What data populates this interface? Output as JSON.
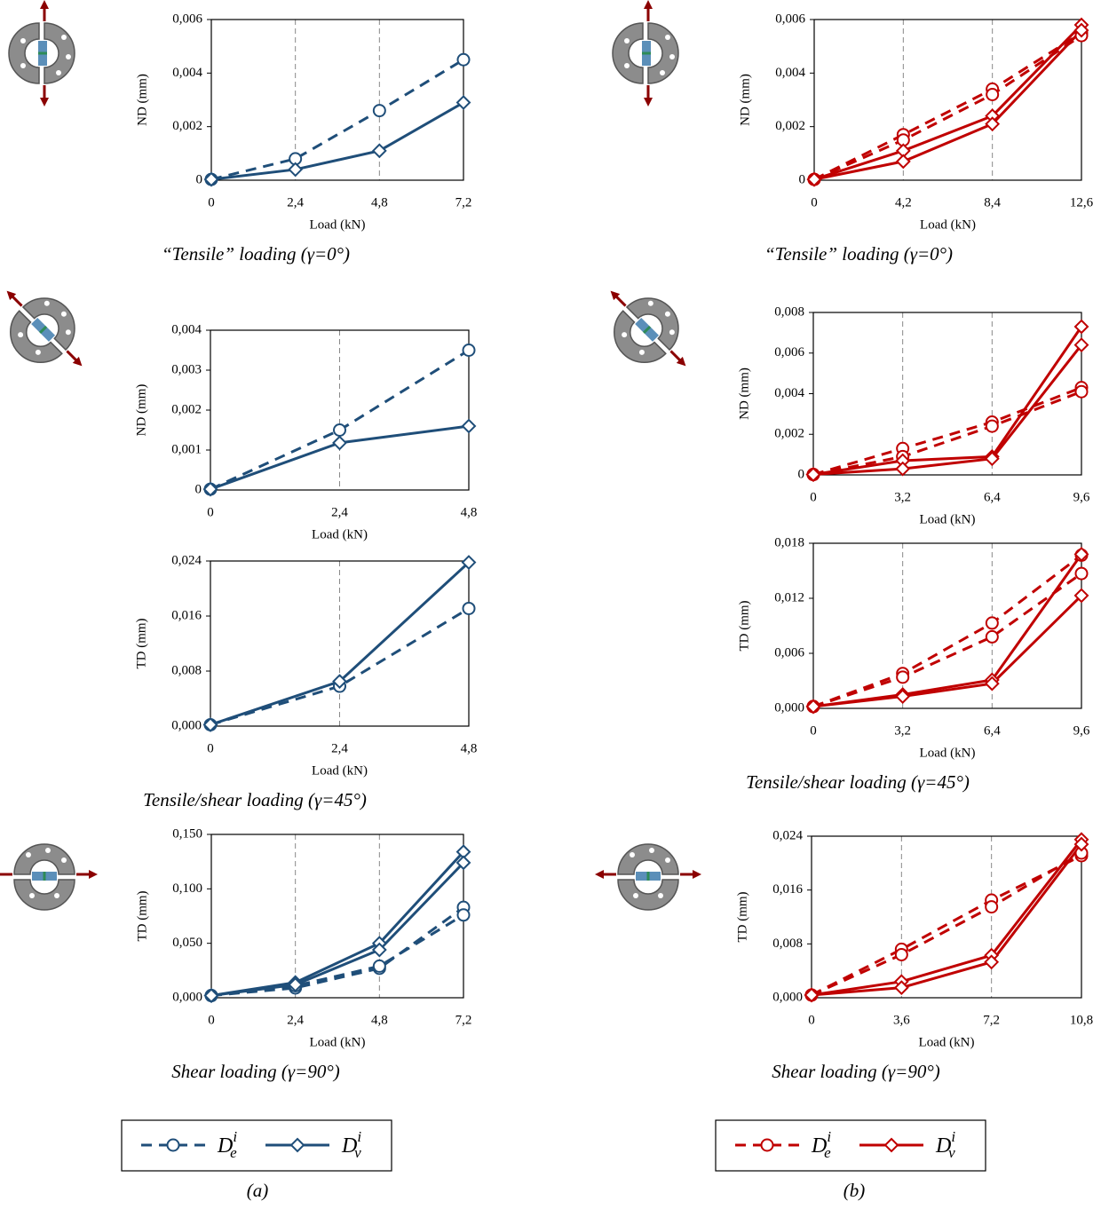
{
  "chart_data": [
    {
      "type": "line",
      "xlabel": "Load (kN)",
      "ylabel": "ND (mm)",
      "caption": "“Tensile” loading (γ=0°)",
      "x": [
        0,
        2.4,
        4.8,
        7.2
      ],
      "xlim": [
        0,
        7.2
      ],
      "xticks": [
        0,
        {
          "value": 2.4,
          "label": "2,4"
        },
        {
          "value": 4.8,
          "label": "4,8"
        },
        {
          "value": 7.2,
          "label": "7,2"
        }
      ],
      "xgrid": true,
      "ylim": [
        0,
        0.006
      ],
      "yticks": [
        0,
        {
          "value": 0.002,
          "label": "0,002"
        },
        {
          "value": 0.004,
          "label": "0,004"
        },
        {
          "value": 0.006,
          "label": "0,006"
        }
      ],
      "series": [
        {
          "color": "#1f4e79",
          "style": "dashed",
          "marker": "circle",
          "values": [
            3e-05,
            0.0008,
            0.0026,
            0.0045
          ]
        },
        {
          "color": "#1f4e79",
          "style": "solid",
          "marker": "diamond",
          "values": [
            3e-05,
            0.0004,
            0.0011,
            0.0029
          ]
        }
      ]
    },
    {
      "type": "line",
      "xlabel": "Load (kN)",
      "ylabel": "ND (mm)",
      "caption": "“Tensile” loading (γ=0°)",
      "x": [
        0,
        4.2,
        8.4,
        12.6
      ],
      "xlim": [
        0,
        12.6
      ],
      "xticks": [
        0,
        {
          "value": 4.2,
          "label": "4,2"
        },
        {
          "value": 8.4,
          "label": "8,4"
        },
        {
          "value": 12.6,
          "label": "12,6"
        }
      ],
      "xgrid": true,
      "ylim": [
        0,
        0.006
      ],
      "yticks": [
        0,
        {
          "value": 0.002,
          "label": "0,002"
        },
        {
          "value": 0.004,
          "label": "0,004"
        },
        {
          "value": 0.006,
          "label": "0,006"
        }
      ],
      "series": [
        {
          "color": "#c00000",
          "style": "dashed",
          "marker": "circle",
          "values": [
            3e-05,
            0.0017,
            0.0034,
            0.0055
          ]
        },
        {
          "color": "#c00000",
          "style": "dashed",
          "marker": "circle",
          "values": [
            3e-05,
            0.0015,
            0.0032,
            0.0054
          ]
        },
        {
          "color": "#c00000",
          "style": "solid",
          "marker": "diamond",
          "values": [
            3e-05,
            0.0011,
            0.0024,
            0.0058
          ]
        },
        {
          "color": "#c00000",
          "style": "solid",
          "marker": "diamond",
          "values": [
            3e-05,
            0.0007,
            0.0021,
            0.0056
          ]
        }
      ]
    },
    {
      "type": "line",
      "xlabel": "Load (kN)",
      "ylabel": "ND (mm)",
      "x": [
        0,
        2.4,
        4.8
      ],
      "xlim": [
        0,
        4.8
      ],
      "xticks": [
        0,
        {
          "value": 2.4,
          "label": "2,4"
        },
        {
          "value": 4.8,
          "label": "4,8"
        }
      ],
      "xgrid": true,
      "ylim": [
        0,
        0.004
      ],
      "yticks": [
        0,
        {
          "value": 0.001,
          "label": "0,001"
        },
        {
          "value": 0.002,
          "label": "0,002"
        },
        {
          "value": 0.003,
          "label": "0,003"
        },
        {
          "value": 0.004,
          "label": "0,004"
        }
      ],
      "series": [
        {
          "color": "#1f4e79",
          "style": "dashed",
          "marker": "circle",
          "values": [
            2e-05,
            0.0015,
            0.0035
          ]
        },
        {
          "color": "#1f4e79",
          "style": "solid",
          "marker": "diamond",
          "values": [
            2e-05,
            0.00118,
            0.0016
          ]
        }
      ]
    },
    {
      "type": "line",
      "xlabel": "Load (kN)",
      "ylabel": "ND (mm)",
      "x": [
        0,
        3.2,
        6.4,
        9.6
      ],
      "xlim": [
        0,
        9.6
      ],
      "xticks": [
        0,
        {
          "value": 3.2,
          "label": "3,2"
        },
        {
          "value": 6.4,
          "label": "6,4"
        },
        {
          "value": 9.6,
          "label": "9,6"
        }
      ],
      "xgrid": true,
      "ylim": [
        0,
        0.008
      ],
      "yticks": [
        0,
        {
          "value": 0.002,
          "label": "0,002"
        },
        {
          "value": 0.004,
          "label": "0,004"
        },
        {
          "value": 0.006,
          "label": "0,006"
        },
        {
          "value": 0.008,
          "label": "0,008"
        }
      ],
      "series": [
        {
          "color": "#c00000",
          "style": "dashed",
          "marker": "circle",
          "values": [
            2e-05,
            0.0013,
            0.0026,
            0.0043
          ]
        },
        {
          "color": "#c00000",
          "style": "dashed",
          "marker": "circle",
          "values": [
            2e-05,
            0.0009,
            0.0024,
            0.0041
          ]
        },
        {
          "color": "#c00000",
          "style": "solid",
          "marker": "diamond",
          "values": [
            2e-05,
            0.0007,
            0.0009,
            0.0073
          ]
        },
        {
          "color": "#c00000",
          "style": "solid",
          "marker": "diamond",
          "values": [
            2e-05,
            0.0003,
            0.0008,
            0.0064
          ]
        }
      ]
    },
    {
      "type": "line",
      "xlabel": "Load (kN)",
      "ylabel": "TD (mm)",
      "caption": "Tensile/shear loading (γ=45°)",
      "x": [
        0,
        2.4,
        4.8
      ],
      "xlim": [
        0,
        4.8
      ],
      "xticks": [
        0,
        {
          "value": 2.4,
          "label": "2,4"
        },
        {
          "value": 4.8,
          "label": "4,8"
        }
      ],
      "xgrid": true,
      "ylim": [
        0,
        0.024
      ],
      "yticks": [
        {
          "value": 0,
          "label": "0,000"
        },
        {
          "value": 0.008,
          "label": "0,008"
        },
        {
          "value": 0.016,
          "label": "0,016"
        },
        {
          "value": 0.024,
          "label": "0,024"
        }
      ],
      "series": [
        {
          "color": "#1f4e79",
          "style": "dashed",
          "marker": "circle",
          "values": [
            0.0002,
            0.0058,
            0.0171
          ]
        },
        {
          "color": "#1f4e79",
          "style": "solid",
          "marker": "diamond",
          "values": [
            0.0002,
            0.0065,
            0.0238
          ]
        }
      ]
    },
    {
      "type": "line",
      "xlabel": "Load (kN)",
      "ylabel": "TD (mm)",
      "caption": "Tensile/shear loading (γ=45°)",
      "x": [
        0,
        3.2,
        6.4,
        9.6
      ],
      "xlim": [
        0,
        9.6
      ],
      "xticks": [
        0,
        {
          "value": 3.2,
          "label": "3,2"
        },
        {
          "value": 6.4,
          "label": "6,4"
        },
        {
          "value": 9.6,
          "label": "9,6"
        }
      ],
      "xgrid": true,
      "ylim": [
        0,
        0.018
      ],
      "yticks": [
        {
          "value": 0,
          "label": "0,000"
        },
        {
          "value": 0.006,
          "label": "0,006"
        },
        {
          "value": 0.012,
          "label": "0,012"
        },
        {
          "value": 0.018,
          "label": "0,018"
        }
      ],
      "series": [
        {
          "color": "#c00000",
          "style": "dashed",
          "marker": "circle",
          "values": [
            0.0002,
            0.0038,
            0.0093,
            0.0167
          ]
        },
        {
          "color": "#c00000",
          "style": "dashed",
          "marker": "circle",
          "values": [
            0.0002,
            0.0034,
            0.0078,
            0.0147
          ]
        },
        {
          "color": "#c00000",
          "style": "solid",
          "marker": "diamond",
          "values": [
            0.0002,
            0.0015,
            0.0031,
            0.0168
          ]
        },
        {
          "color": "#c00000",
          "style": "solid",
          "marker": "diamond",
          "values": [
            0.0002,
            0.0013,
            0.0027,
            0.0123
          ]
        }
      ]
    },
    {
      "type": "line",
      "xlabel": "Load (kN)",
      "ylabel": "TD (mm)",
      "caption": "Shear loading (γ=90°)",
      "x": [
        0,
        2.4,
        4.8,
        7.2
      ],
      "xlim": [
        0,
        7.2
      ],
      "xticks": [
        0,
        {
          "value": 2.4,
          "label": "2,4"
        },
        {
          "value": 4.8,
          "label": "4,8"
        },
        {
          "value": 7.2,
          "label": "7,2"
        }
      ],
      "xgrid": true,
      "ylim": [
        0,
        0.15
      ],
      "yticks": [
        {
          "value": 0,
          "label": "0,000"
        },
        {
          "value": 0.05,
          "label": "0,050"
        },
        {
          "value": 0.1,
          "label": "0,100"
        },
        {
          "value": 0.15,
          "label": "0,150"
        }
      ],
      "series": [
        {
          "color": "#1f4e79",
          "style": "dashed",
          "marker": "circle",
          "values": [
            0.002,
            0.009,
            0.027,
            0.083
          ]
        },
        {
          "color": "#1f4e79",
          "style": "dashed",
          "marker": "circle",
          "values": [
            0.002,
            0.011,
            0.029,
            0.076
          ]
        },
        {
          "color": "#1f4e79",
          "style": "solid",
          "marker": "diamond",
          "values": [
            0.002,
            0.014,
            0.05,
            0.134
          ]
        },
        {
          "color": "#1f4e79",
          "style": "solid",
          "marker": "diamond",
          "values": [
            0.002,
            0.012,
            0.044,
            0.124
          ]
        }
      ]
    },
    {
      "type": "line",
      "xlabel": "Load (kN)",
      "ylabel": "TD (mm)",
      "caption": "Shear loading (γ=90°)",
      "x": [
        0,
        3.6,
        7.2,
        10.8
      ],
      "xlim": [
        0,
        10.8
      ],
      "xticks": [
        0,
        {
          "value": 3.6,
          "label": "3,6"
        },
        {
          "value": 7.2,
          "label": "7,2"
        },
        {
          "value": 10.8,
          "label": "10,8"
        }
      ],
      "xgrid": true,
      "ylim": [
        0,
        0.024
      ],
      "yticks": [
        {
          "value": 0,
          "label": "0,000"
        },
        {
          "value": 0.008,
          "label": "0,008"
        },
        {
          "value": 0.016,
          "label": "0,016"
        },
        {
          "value": 0.024,
          "label": "0,024"
        }
      ],
      "series": [
        {
          "color": "#c00000",
          "style": "dashed",
          "marker": "circle",
          "values": [
            0.0004,
            0.0072,
            0.0145,
            0.0211
          ]
        },
        {
          "color": "#c00000",
          "style": "dashed",
          "marker": "circle",
          "values": [
            0.0004,
            0.0064,
            0.0135,
            0.0215
          ]
        },
        {
          "color": "#c00000",
          "style": "solid",
          "marker": "diamond",
          "values": [
            0.0004,
            0.0024,
            0.0063,
            0.0235
          ]
        },
        {
          "color": "#c00000",
          "style": "solid",
          "marker": "diamond",
          "values": [
            0.0004,
            0.0015,
            0.0053,
            0.0228
          ]
        }
      ]
    }
  ],
  "legends": [
    {
      "items": [
        {
          "base": "D",
          "sub": "e",
          "sup": "i",
          "color": "#1f4e79",
          "style": "dashed",
          "marker": "circle"
        },
        {
          "base": "D",
          "sub": "v",
          "sup": "i",
          "color": "#1f4e79",
          "style": "solid",
          "marker": "diamond"
        }
      ]
    },
    {
      "items": [
        {
          "base": "D",
          "sub": "e",
          "sup": "i",
          "color": "#c00000",
          "style": "dashed",
          "marker": "circle"
        },
        {
          "base": "D",
          "sub": "v",
          "sup": "i",
          "color": "#c00000",
          "style": "solid",
          "marker": "diamond"
        }
      ]
    }
  ],
  "panel_labels": [
    "(a)",
    "(b)"
  ]
}
